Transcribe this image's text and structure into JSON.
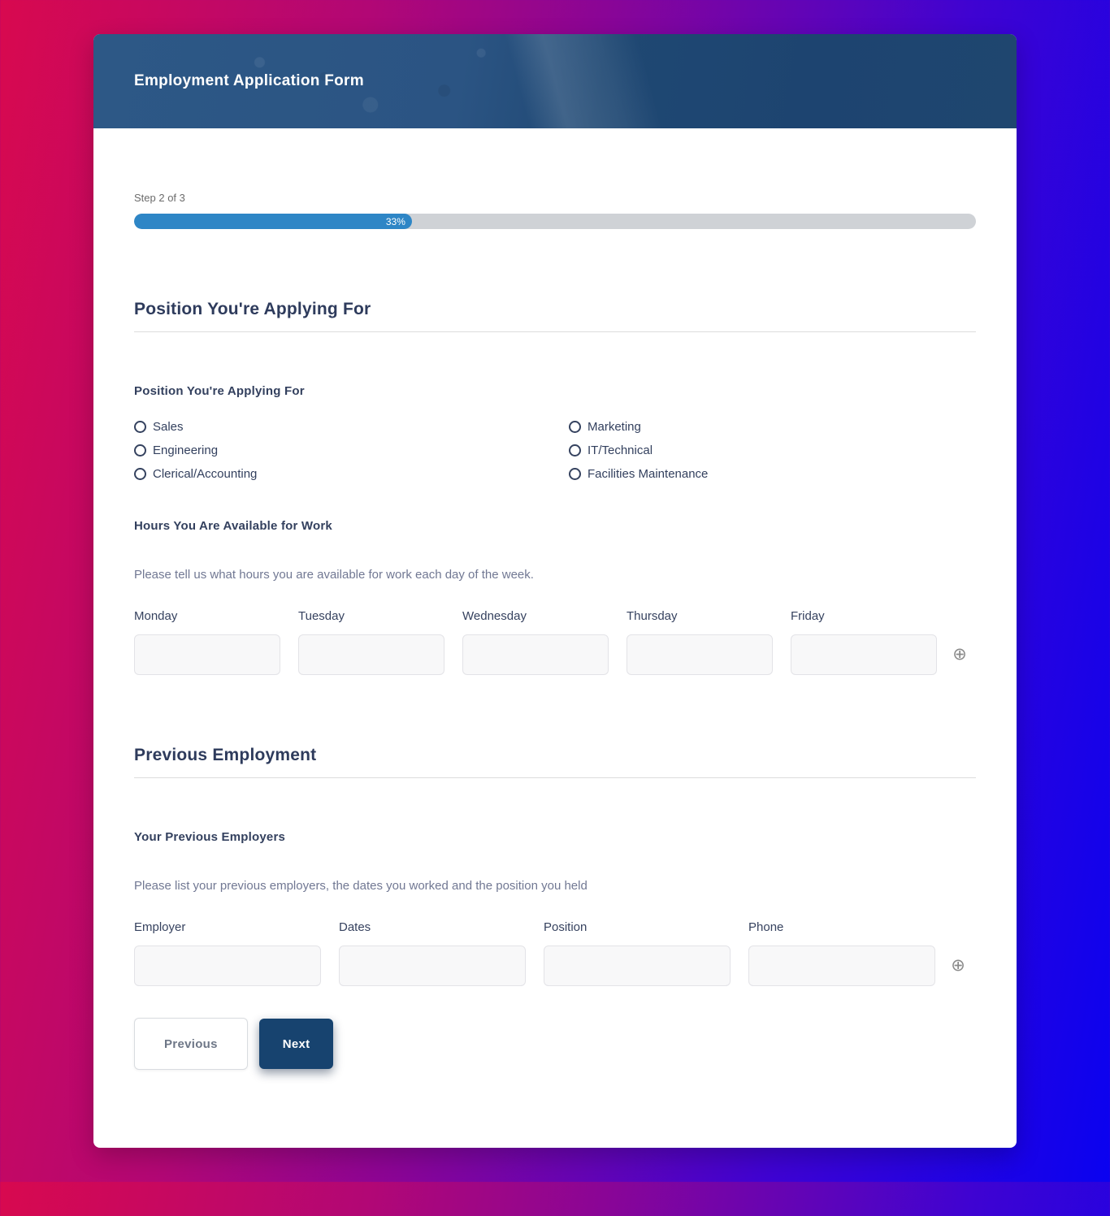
{
  "header": {
    "title": "Employment Application Form"
  },
  "progress": {
    "step_label": "Step 2 of 3",
    "percent": 33,
    "percent_label": "33%",
    "fill_color": "#2e86c6"
  },
  "sections": {
    "position": {
      "title": "Position You're Applying For",
      "group_label": "Position You're Applying For",
      "options": [
        {
          "label": "Sales",
          "checked": false
        },
        {
          "label": "Engineering",
          "checked": false
        },
        {
          "label": "Clerical/Accounting",
          "checked": false
        },
        {
          "label": "Marketing",
          "checked": false
        },
        {
          "label": "IT/Technical",
          "checked": false
        },
        {
          "label": "Facilities Maintenance",
          "checked": false
        }
      ],
      "hours_label": "Hours You Are Available for Work",
      "hours_description": "Please tell us what hours you are available for work each day of the week.",
      "hours_columns": [
        {
          "label": "Monday",
          "value": ""
        },
        {
          "label": "Tuesday",
          "value": ""
        },
        {
          "label": "Wednesday",
          "value": ""
        },
        {
          "label": "Thursday",
          "value": ""
        },
        {
          "label": "Friday",
          "value": ""
        }
      ],
      "add_row_icon": "plus-circle"
    },
    "previous_employment": {
      "title": "Previous Employment",
      "group_label": "Your Previous Employers",
      "description": "Please list your previous employers, the dates you worked and the position you held",
      "columns": [
        {
          "label": "Employer",
          "value": ""
        },
        {
          "label": "Dates",
          "value": ""
        },
        {
          "label": "Position",
          "value": ""
        },
        {
          "label": "Phone",
          "value": ""
        }
      ],
      "add_row_icon": "plus-circle"
    }
  },
  "buttons": {
    "previous": "Previous",
    "next": "Next"
  },
  "icons": {
    "plus": "⊕"
  },
  "colors": {
    "accent_blue": "#2e86c6",
    "navy": "#17436f",
    "heading": "#2e3b5c",
    "background_gradient_start": "#d8094f",
    "background_gradient_end": "#0a02f0"
  }
}
